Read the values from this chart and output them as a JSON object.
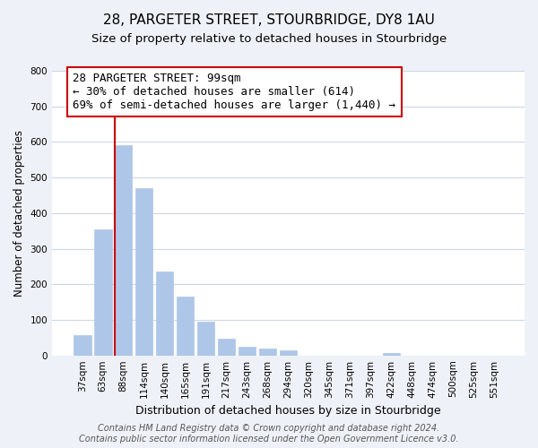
{
  "title": "28, PARGETER STREET, STOURBRIDGE, DY8 1AU",
  "subtitle": "Size of property relative to detached houses in Stourbridge",
  "xlabel": "Distribution of detached houses by size in Stourbridge",
  "ylabel": "Number of detached properties",
  "bar_labels": [
    "37sqm",
    "63sqm",
    "88sqm",
    "114sqm",
    "140sqm",
    "165sqm",
    "191sqm",
    "217sqm",
    "243sqm",
    "268sqm",
    "294sqm",
    "320sqm",
    "345sqm",
    "371sqm",
    "397sqm",
    "422sqm",
    "448sqm",
    "474sqm",
    "500sqm",
    "525sqm",
    "551sqm"
  ],
  "bar_values": [
    57,
    355,
    590,
    470,
    235,
    165,
    95,
    48,
    25,
    20,
    15,
    0,
    0,
    0,
    0,
    8,
    0,
    0,
    0,
    0,
    0
  ],
  "bar_color": "#aec6e8",
  "bar_edge_color": "#aec6e8",
  "vline_color": "#cc0000",
  "annotation_text": "28 PARGETER STREET: 99sqm\n← 30% of detached houses are smaller (614)\n69% of semi-detached houses are larger (1,440) →",
  "annotation_box_color": "#ffffff",
  "annotation_box_edge_color": "#cc0000",
  "ylim": [
    0,
    800
  ],
  "yticks": [
    0,
    100,
    200,
    300,
    400,
    500,
    600,
    700,
    800
  ],
  "bg_color": "#eef2f8",
  "plot_bg_color": "#ffffff",
  "grid_color": "#ccd6e8",
  "footer_line1": "Contains HM Land Registry data © Crown copyright and database right 2024.",
  "footer_line2": "Contains public sector information licensed under the Open Government Licence v3.0.",
  "title_fontsize": 11,
  "subtitle_fontsize": 9.5,
  "xlabel_fontsize": 9,
  "ylabel_fontsize": 8.5,
  "tick_fontsize": 7.5,
  "annotation_fontsize": 9,
  "footer_fontsize": 7
}
